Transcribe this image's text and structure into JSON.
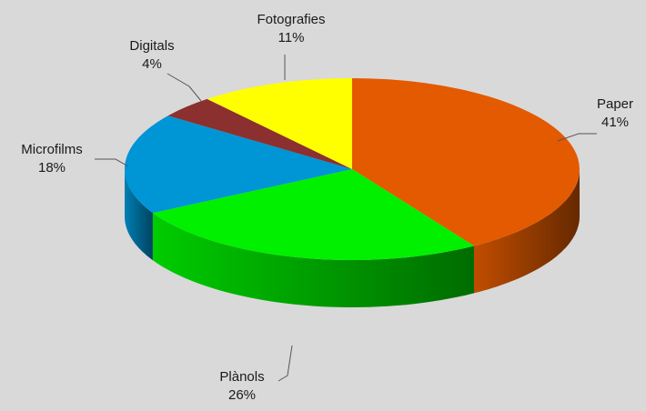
{
  "chart_data": {
    "type": "pie",
    "style": "3d",
    "title": "",
    "slices": [
      {
        "label": "Paper",
        "percent_label": "41%",
        "value": 41,
        "color": "#e35a00"
      },
      {
        "label": "Plànols",
        "percent_label": "26%",
        "value": 26,
        "color": "#00f000"
      },
      {
        "label": "Microfilms",
        "percent_label": "18%",
        "value": 18,
        "color": "#0095d4"
      },
      {
        "label": "Digitals",
        "percent_label": "4%",
        "value": 4,
        "color": "#8b2f2f"
      },
      {
        "label": "Fotografies",
        "percent_label": "11%",
        "value": 11,
        "color": "#ffff00"
      }
    ],
    "legend": "none",
    "data_labels": "outside-with-leader-lines"
  }
}
